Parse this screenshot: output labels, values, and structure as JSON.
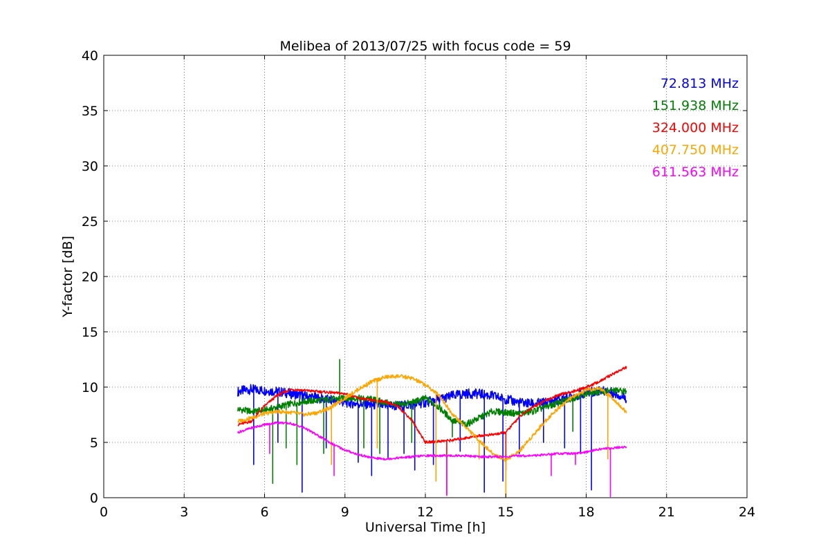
{
  "chart_data": {
    "type": "line",
    "title": "Melibea of 2013/07/25 with focus code = 59",
    "xlabel": "Universal Time [h]",
    "ylabel": "Y-factor [dB]",
    "xlim": [
      0,
      24
    ],
    "ylim": [
      0,
      40
    ],
    "xticks": [
      0,
      3,
      6,
      9,
      12,
      15,
      18,
      21,
      24
    ],
    "yticks": [
      0,
      5,
      10,
      15,
      20,
      25,
      30,
      35,
      40
    ],
    "grid": true,
    "legend_position": "top-right",
    "series": [
      {
        "name": "72.813 MHz",
        "color": "#0000ff",
        "x": [
          5.0,
          5.5,
          6.0,
          6.5,
          7.0,
          7.5,
          8.0,
          8.5,
          9.0,
          9.5,
          10.0,
          10.5,
          11.0,
          11.5,
          12.0,
          12.5,
          13.0,
          13.5,
          14.0,
          14.5,
          15.0,
          15.5,
          16.0,
          16.5,
          17.0,
          17.5,
          18.0,
          18.5,
          19.0,
          19.5
        ],
        "y": [
          9.6,
          9.8,
          9.7,
          9.6,
          9.4,
          9.2,
          9.0,
          8.8,
          8.6,
          8.5,
          8.4,
          8.3,
          8.3,
          8.4,
          8.6,
          8.9,
          9.2,
          9.4,
          9.4,
          9.2,
          8.9,
          8.6,
          8.5,
          8.6,
          8.9,
          9.2,
          9.5,
          9.7,
          9.5,
          9.0
        ],
        "dips": [
          [
            5.6,
            3.0
          ],
          [
            6.5,
            5.0
          ],
          [
            7.4,
            0.5
          ],
          [
            8.3,
            4.5
          ],
          [
            9.5,
            3.2
          ],
          [
            10.0,
            2.0
          ],
          [
            10.6,
            3.5
          ],
          [
            11.2,
            4.0
          ],
          [
            11.6,
            2.5
          ],
          [
            12.3,
            3.0
          ],
          [
            13.3,
            4.2
          ],
          [
            14.2,
            0.5
          ],
          [
            14.9,
            1.5
          ],
          [
            15.5,
            4.0
          ],
          [
            16.4,
            5.0
          ],
          [
            17.2,
            4.5
          ],
          [
            17.8,
            4.0
          ],
          [
            18.2,
            0.7
          ]
        ]
      },
      {
        "name": "151.938 MHz",
        "color": "#008000",
        "x": [
          5.0,
          5.5,
          6.0,
          6.5,
          7.0,
          7.5,
          8.0,
          8.5,
          9.0,
          9.5,
          10.0,
          10.5,
          11.0,
          11.5,
          12.0,
          12.5,
          13.0,
          13.5,
          14.0,
          14.5,
          15.0,
          15.5,
          16.0,
          16.5,
          17.0,
          17.5,
          18.0,
          18.5,
          19.0,
          19.5
        ],
        "y": [
          8.0,
          7.8,
          7.9,
          8.2,
          8.5,
          8.7,
          8.8,
          8.9,
          9.0,
          9.0,
          8.9,
          8.6,
          8.4,
          8.6,
          9.0,
          8.2,
          7.0,
          6.6,
          7.2,
          7.8,
          7.7,
          7.6,
          7.8,
          8.2,
          8.6,
          9.0,
          9.4,
          9.6,
          9.7,
          9.6
        ],
        "dips": [
          [
            6.3,
            1.3
          ],
          [
            6.8,
            4.5
          ],
          [
            7.2,
            3.0
          ],
          [
            8.2,
            4.0
          ],
          [
            8.8,
            12.5
          ],
          [
            9.7,
            4.5
          ],
          [
            10.3,
            4.0
          ],
          [
            11.5,
            5.0
          ],
          [
            13.0,
            5.5
          ],
          [
            17.5,
            6.0
          ]
        ]
      },
      {
        "name": "324.000 MHz",
        "color": "#ff0000",
        "x": [
          5.0,
          5.5,
          6.0,
          6.5,
          7.0,
          7.5,
          8.0,
          8.5,
          9.0,
          9.5,
          10.0,
          10.5,
          11.0,
          11.5,
          12.0,
          12.5,
          13.0,
          13.5,
          14.0,
          14.5,
          15.0,
          15.5,
          16.0,
          16.5,
          17.0,
          17.5,
          18.0,
          18.5,
          19.0,
          19.5
        ],
        "y": [
          6.6,
          6.9,
          8.3,
          9.3,
          9.8,
          9.7,
          9.6,
          9.5,
          9.4,
          9.0,
          8.8,
          8.7,
          8.2,
          7.0,
          5.0,
          5.1,
          5.2,
          5.4,
          5.6,
          5.7,
          5.9,
          7.3,
          8.2,
          8.8,
          9.3,
          9.6,
          10.0,
          10.5,
          11.2,
          11.8
        ],
        "dips": [
          [
            12.8,
            0.3
          ],
          [
            15.0,
            2.5
          ]
        ]
      },
      {
        "name": "407.750 MHz",
        "color": "#ffa500",
        "x": [
          5.0,
          5.5,
          6.0,
          6.5,
          7.0,
          7.5,
          8.0,
          8.5,
          9.0,
          9.5,
          10.0,
          10.5,
          11.0,
          11.5,
          12.0,
          12.5,
          13.0,
          13.5,
          14.0,
          14.5,
          15.0,
          15.5,
          16.0,
          16.5,
          17.0,
          17.5,
          18.0,
          18.5,
          19.0,
          19.5
        ],
        "y": [
          6.9,
          7.2,
          7.6,
          7.8,
          7.7,
          7.5,
          7.7,
          8.2,
          9.0,
          9.8,
          10.5,
          10.9,
          11.0,
          10.8,
          10.2,
          9.3,
          7.6,
          6.4,
          5.2,
          4.0,
          3.4,
          4.2,
          5.6,
          7.0,
          8.2,
          9.1,
          9.7,
          9.9,
          9.0,
          7.7
        ],
        "dips": [
          [
            8.5,
            3.0
          ],
          [
            10.2,
            4.5
          ],
          [
            12.4,
            1.5
          ],
          [
            14.0,
            3.5
          ],
          [
            15.0,
            0.1
          ],
          [
            18.8,
            3.5
          ]
        ]
      },
      {
        "name": "611.563 MHz",
        "color": "#ff00ff",
        "x": [
          5.0,
          5.5,
          6.0,
          6.5,
          7.0,
          7.5,
          8.0,
          8.5,
          9.0,
          9.5,
          10.0,
          10.5,
          11.0,
          11.5,
          12.0,
          12.5,
          13.0,
          13.5,
          14.0,
          14.5,
          15.0,
          15.5,
          16.0,
          16.5,
          17.0,
          17.5,
          18.0,
          18.5,
          19.0,
          19.5
        ],
        "y": [
          5.9,
          6.3,
          6.6,
          6.8,
          6.7,
          6.3,
          5.6,
          4.9,
          4.3,
          3.9,
          3.6,
          3.5,
          3.6,
          3.7,
          3.8,
          3.8,
          3.8,
          3.8,
          3.7,
          3.7,
          3.7,
          3.8,
          3.8,
          3.9,
          4.0,
          4.0,
          4.1,
          4.4,
          4.5,
          4.6
        ],
        "dips": [
          [
            6.2,
            4.0
          ],
          [
            8.6,
            2.0
          ],
          [
            12.8,
            0.2
          ],
          [
            16.7,
            2.0
          ],
          [
            17.6,
            3.0
          ],
          [
            18.9,
            0.1
          ]
        ]
      }
    ]
  }
}
